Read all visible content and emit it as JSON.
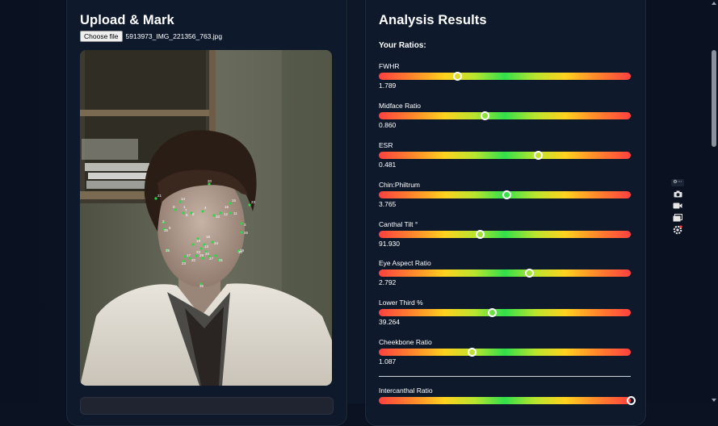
{
  "left_panel": {
    "title": "Upload & Mark",
    "file_button": "Choose file",
    "file_name": "5913973_IMG_221356_763.jpg",
    "landmark_labels": [
      "20",
      "21",
      "14",
      "15",
      "16",
      "22",
      "9",
      "8",
      "7",
      "6",
      "4",
      "11",
      "12",
      "1",
      "10",
      "2",
      "18",
      "3",
      "26",
      "35",
      "25",
      "19",
      "13",
      "24",
      "17",
      "33",
      "30",
      "34",
      "23",
      "28",
      "29",
      "31",
      "32",
      "27",
      "36",
      "5"
    ]
  },
  "right_panel": {
    "title": "Analysis Results",
    "ratios_heading": "Your Ratios:",
    "metrics": [
      {
        "label": "FWHR",
        "value": "1.789",
        "position": 0.31
      },
      {
        "label": "Midface Ratio",
        "value": "0.860",
        "position": 0.42
      },
      {
        "label": "ESR",
        "value": "0.481",
        "position": 0.63
      },
      {
        "label": "Chin:Philtrum",
        "value": "3.765",
        "position": 0.505
      },
      {
        "label": "Canthal Tilt °",
        "value": "91.930",
        "position": 0.4
      },
      {
        "label": "Eye Aspect Ratio",
        "value": "2.792",
        "position": 0.595
      },
      {
        "label": "Lower Third %",
        "value": "39.264",
        "position": 0.45
      },
      {
        "label": "Cheekbone Ratio",
        "value": "1.087",
        "position": 0.37
      },
      {
        "label": "Intercanthal Ratio",
        "value": "",
        "position": 1.0
      }
    ]
  },
  "colors": {
    "background": "#0b1322",
    "card": "#0e1a2c",
    "landmark": "#2bd84a",
    "gradient_low": "#ff4040",
    "gradient_mid": "#32e04a",
    "gradient_warn": "#ffd21e"
  },
  "side_tools": [
    "extension-icon",
    "camera-icon",
    "video-icon",
    "windows-icon",
    "settings-icon"
  ]
}
